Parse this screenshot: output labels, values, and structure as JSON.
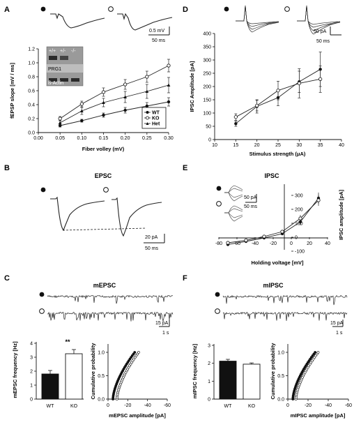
{
  "panel_labels": [
    "A",
    "B",
    "C",
    "D",
    "E",
    "F"
  ],
  "panel_a": {
    "ylabel": "fEPSP slope [mV / ms]",
    "xlabel": "Fiber volley (mV)",
    "scalebar_v": "0.5 mV",
    "scalebar_t": "50 ms",
    "blot": {
      "lanes": [
        "+/+",
        "+/-",
        "-/-"
      ],
      "band1": "PRG1",
      "band2": "ß-Actin"
    }
  },
  "panel_b": {
    "title": "EPSC",
    "scalebar_v": "20 pA",
    "scalebar_t": "50 ms"
  },
  "panel_c": {
    "title": "mEPSC",
    "scalebar_v": "15 pA",
    "scalebar_t": "1 s"
  },
  "panel_d": {
    "ylabel": "IPSC Amplitude [pA]",
    "xlabel": "Stimulus strength (μA)",
    "scalebar_v": "50 pA",
    "scalebar_t": "50 ms"
  },
  "panel_e": {
    "title": "IPSC",
    "ylabel": "IPSC amplitude [pA]",
    "xlabel": "Holding voltage [mV]",
    "scalebar_v": "50 pA",
    "scalebar_t": "50 ms"
  },
  "panel_f": {
    "title": "mIPSC",
    "scalebar_v": "15 pA",
    "scalebar_t": "1 s"
  },
  "colors": {
    "wt": "#111111",
    "ko": "#ffffff",
    "line": "#222222",
    "blot_bg": "#9a9a9a"
  },
  "chart_data": [
    {
      "id": "A",
      "type": "line",
      "xlabel": "Fiber volley (mV)",
      "ylabel": "fEPSP slope [mV / ms]",
      "xlim": [
        0.0,
        0.3
      ],
      "ylim": [
        0.0,
        1.2
      ],
      "xticks": [
        "0.00",
        "0.05",
        "0.10",
        "0.15",
        "0.20",
        "0.25",
        "0.30"
      ],
      "yticks": [
        "0.0",
        "0.2",
        "0.4",
        "0.6",
        "0.8",
        "1.0",
        "1.2"
      ],
      "x": [
        0.05,
        0.1,
        0.15,
        0.2,
        0.25,
        0.3
      ],
      "legend_position": "lower-right",
      "series": [
        {
          "name": "WT",
          "marker": "filled-circle",
          "values": [
            0.1,
            0.17,
            0.25,
            0.32,
            0.38,
            0.44
          ],
          "err": [
            0.02,
            0.02,
            0.03,
            0.04,
            0.05,
            0.06
          ]
        },
        {
          "name": "KO",
          "marker": "open-circle",
          "values": [
            0.2,
            0.41,
            0.58,
            0.69,
            0.8,
            0.96
          ],
          "err": [
            0.03,
            0.04,
            0.06,
            0.07,
            0.08,
            0.09
          ]
        },
        {
          "name": "Het",
          "marker": "triangle",
          "values": [
            0.14,
            0.31,
            0.43,
            0.51,
            0.59,
            0.68
          ],
          "err": [
            0.03,
            0.05,
            0.06,
            0.08,
            0.1,
            0.11
          ]
        }
      ]
    },
    {
      "id": "C-bar",
      "type": "bar",
      "ylabel": "mEPSC frequency [Hz]",
      "ylim": [
        0,
        4
      ],
      "yticks": [
        "0",
        "1",
        "2",
        "3",
        "4"
      ],
      "categories": [
        "WT",
        "KO"
      ],
      "values": [
        1.8,
        3.25
      ],
      "err": [
        0.25,
        0.3
      ],
      "annotation": "**"
    },
    {
      "id": "C-cum",
      "type": "line",
      "xlabel": "mEPSC amplitude [pA]",
      "ylabel": "Cumulative probability",
      "xlim": [
        0,
        -60
      ],
      "ylim": [
        0.0,
        1.0
      ],
      "xticks": [
        "0",
        "-20",
        "-40",
        "-60"
      ],
      "yticks": [
        "0.0",
        "0.5",
        "1.0"
      ]
    },
    {
      "id": "D",
      "type": "line",
      "xlabel": "Stimulus strength (μA)",
      "ylabel": "IPSC Amplitude [pA]",
      "xlim": [
        10,
        40
      ],
      "ylim": [
        0,
        400
      ],
      "xticks": [
        "10",
        "15",
        "20",
        "25",
        "30",
        "35",
        "40"
      ],
      "yticks": [
        "0",
        "50",
        "100",
        "150",
        "200",
        "250",
        "300",
        "350",
        "400"
      ],
      "x": [
        15,
        20,
        25,
        30,
        35
      ],
      "series": [
        {
          "marker": "filled-circle",
          "values": [
            60,
            125,
            158,
            218,
            265
          ],
          "err": [
            10,
            25,
            30,
            40,
            65
          ]
        },
        {
          "marker": "open-circle",
          "values": [
            85,
            128,
            185,
            212,
            228
          ],
          "err": [
            12,
            20,
            35,
            55,
            50
          ]
        }
      ]
    },
    {
      "id": "E",
      "type": "line",
      "xlabel": "Holding voltage [mV]",
      "ylabel": "IPSC amplitude [pA]",
      "xlim": [
        -80,
        40
      ],
      "ylim": [
        -100,
        350
      ],
      "xticks": [
        "-80",
        "-60",
        "-40",
        "-20",
        "0",
        "20",
        "40"
      ],
      "yticks": [
        "-100",
        "0",
        "100",
        "200",
        "300"
      ],
      "x": [
        -70,
        -50,
        -30,
        -10,
        10,
        30
      ],
      "series": [
        {
          "marker": "filled-circle",
          "values": [
            -52,
            -30,
            -5,
            25,
            110,
            280
          ],
          "err": [
            8,
            6,
            6,
            10,
            25,
            40
          ]
        },
        {
          "marker": "open-circle",
          "values": [
            -40,
            -22,
            5,
            40,
            135,
            265
          ],
          "err": [
            8,
            6,
            6,
            10,
            25,
            40
          ]
        }
      ]
    },
    {
      "id": "F-bar",
      "type": "bar",
      "ylabel": "mIPSC frequency [Hz]",
      "ylim": [
        0,
        3
      ],
      "yticks": [
        "0",
        "1",
        "2",
        "3"
      ],
      "categories": [
        "WT",
        "KO"
      ],
      "values": [
        2.12,
        1.95
      ],
      "err": [
        0.1,
        0.07
      ]
    },
    {
      "id": "F-cum",
      "type": "line",
      "xlabel": "mIPSC amplitude [pA]",
      "ylabel": "Cumulative probability",
      "xlim": [
        0,
        -60
      ],
      "ylim": [
        0.0,
        1.0
      ],
      "xticks": [
        "0",
        "-20",
        "-40",
        "-60"
      ],
      "yticks": [
        "0.0",
        "0.5",
        "1.0"
      ]
    }
  ]
}
